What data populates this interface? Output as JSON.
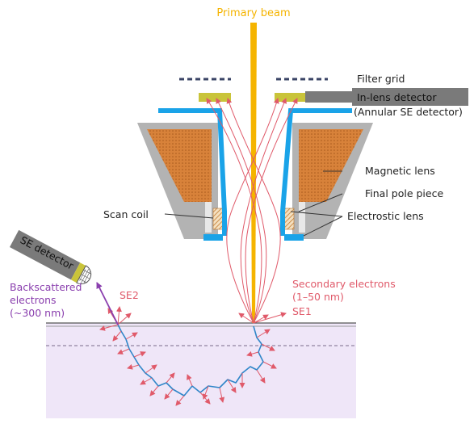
{
  "labels": {
    "primary_beam": "Primary beam",
    "filter_grid": "Filter grid",
    "inlens_detector": "In-lens detector",
    "annular_se_detector": "(Annular SE detector)",
    "magnetic_lens": "Magnetic lens",
    "final_pole_piece": "Final pole piece",
    "electrostatic_lens": "Electrostic lens",
    "scan_coil": "Scan coil",
    "se_detector": "SE detector",
    "backscattered_line1": "Backscattered",
    "backscattered_line2": "electrons",
    "backscattered_line3": "(~300 nm)",
    "se2": "SE2",
    "secondary_line1": "Secondary electrons",
    "secondary_line2": "(1–50 nm)",
    "se1": "SE1"
  },
  "colors": {
    "beam": "#f5b400",
    "lens_outer": "#b3b3b3",
    "coil_fill": "#d8823a",
    "shield": "#1aa3e8",
    "detector_plate": "#c9c43a",
    "detector_body": "#7a7a7a",
    "grid": "#3a4466",
    "specimen": "#efe6f8",
    "trajectory": "#2f86c9",
    "electron_arrow": "#e05a6a",
    "backscatter_arrow": "#8a3fae"
  }
}
